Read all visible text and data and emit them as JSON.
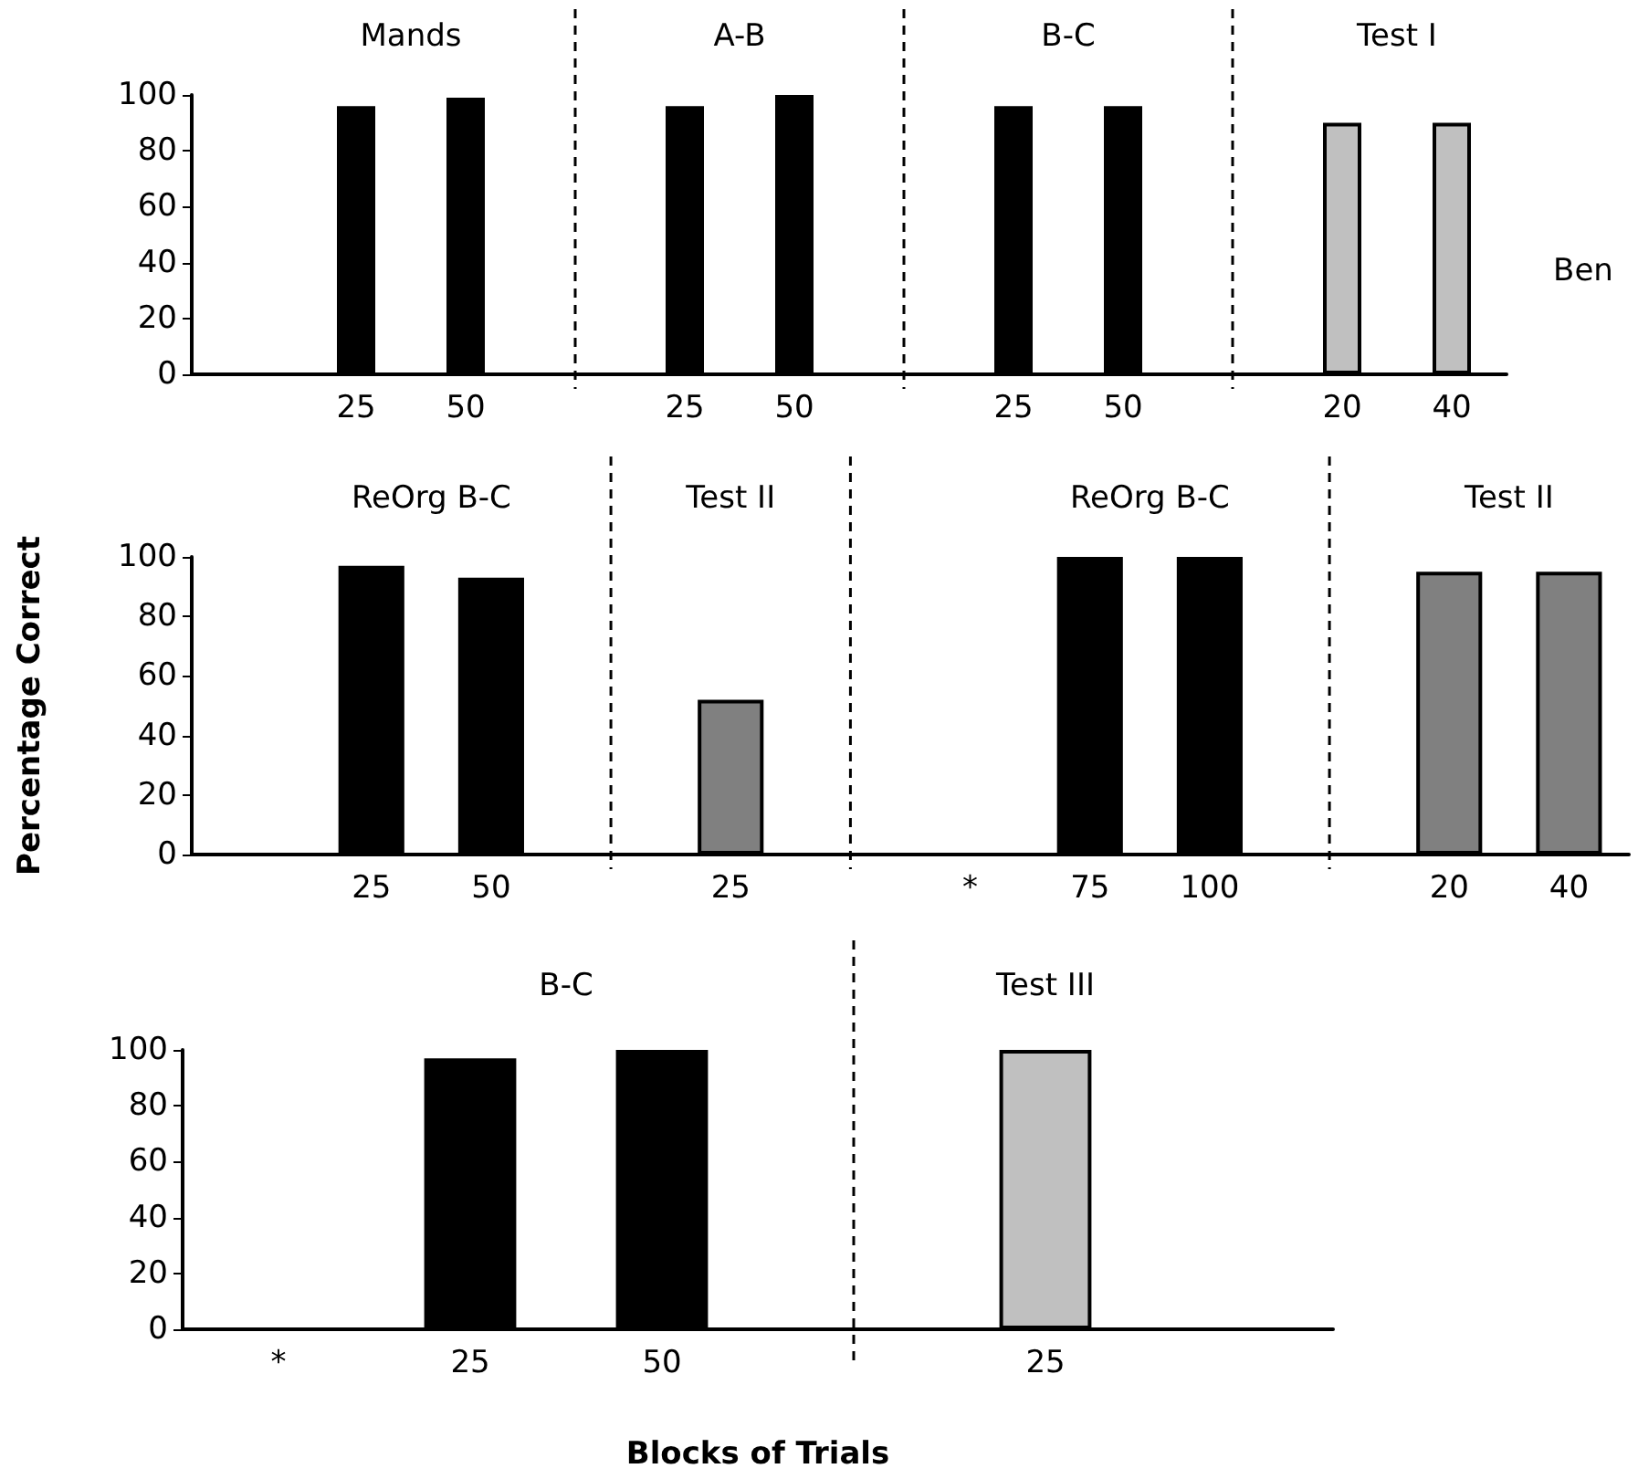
{
  "chart_data": [
    {
      "type": "bar",
      "categories": [
        null,
        "25",
        "50",
        null,
        "25",
        "50",
        null,
        "25",
        "50",
        null,
        "20",
        "40"
      ],
      "values": [
        null,
        96,
        99,
        null,
        96,
        100,
        null,
        96,
        96,
        null,
        90,
        90
      ],
      "colors": [
        "#000000",
        "#000000",
        "#000000",
        "#000000",
        "#000000",
        "#000000",
        "#000000",
        "#000000",
        "#000000",
        "#000000",
        "#c0c0c0",
        "#c0c0c0"
      ],
      "ylim": [
        0,
        100
      ],
      "yticks": [
        0,
        20,
        40,
        60,
        80,
        100
      ],
      "grid": "x",
      "annotations": [
        "Mands",
        "A-B",
        "B-C",
        "Test I",
        "Ben"
      ]
    },
    {
      "type": "bar",
      "ylabel": "Percentage Correct",
      "categories": [
        null,
        "25",
        "50",
        null,
        "25",
        null,
        "*",
        "75",
        "100",
        null,
        "20",
        "40"
      ],
      "values": [
        null,
        97,
        93,
        null,
        52,
        null,
        null,
        100,
        100,
        null,
        95,
        95
      ],
      "colors": [
        "#000000",
        "#000000",
        "#000000",
        "#000000",
        "#808080",
        "#000000",
        "#000000",
        "#000000",
        "#000000",
        "#000000",
        "#808080",
        "#808080"
      ],
      "ylim": [
        0,
        100
      ],
      "yticks": [
        0,
        20,
        40,
        60,
        80,
        100
      ],
      "grid": "x",
      "annotations": [
        "ReOrg B-C",
        "Test II",
        "ReOrg B-C",
        "Test II"
      ]
    },
    {
      "type": "bar",
      "xlabel": "Blocks of Trials",
      "categories": [
        "*",
        "25",
        "50",
        null,
        "25",
        null
      ],
      "values": [
        null,
        97,
        100,
        null,
        100,
        null
      ],
      "colors": [
        "#000000",
        "#000000",
        "#000000",
        "#000000",
        "#c0c0c0",
        "#000000"
      ],
      "ylim": [
        0,
        100
      ],
      "yticks": [
        0,
        20,
        40,
        60,
        80,
        100
      ],
      "grid": "x",
      "annotations": [
        "B-C",
        "Test III"
      ]
    }
  ]
}
